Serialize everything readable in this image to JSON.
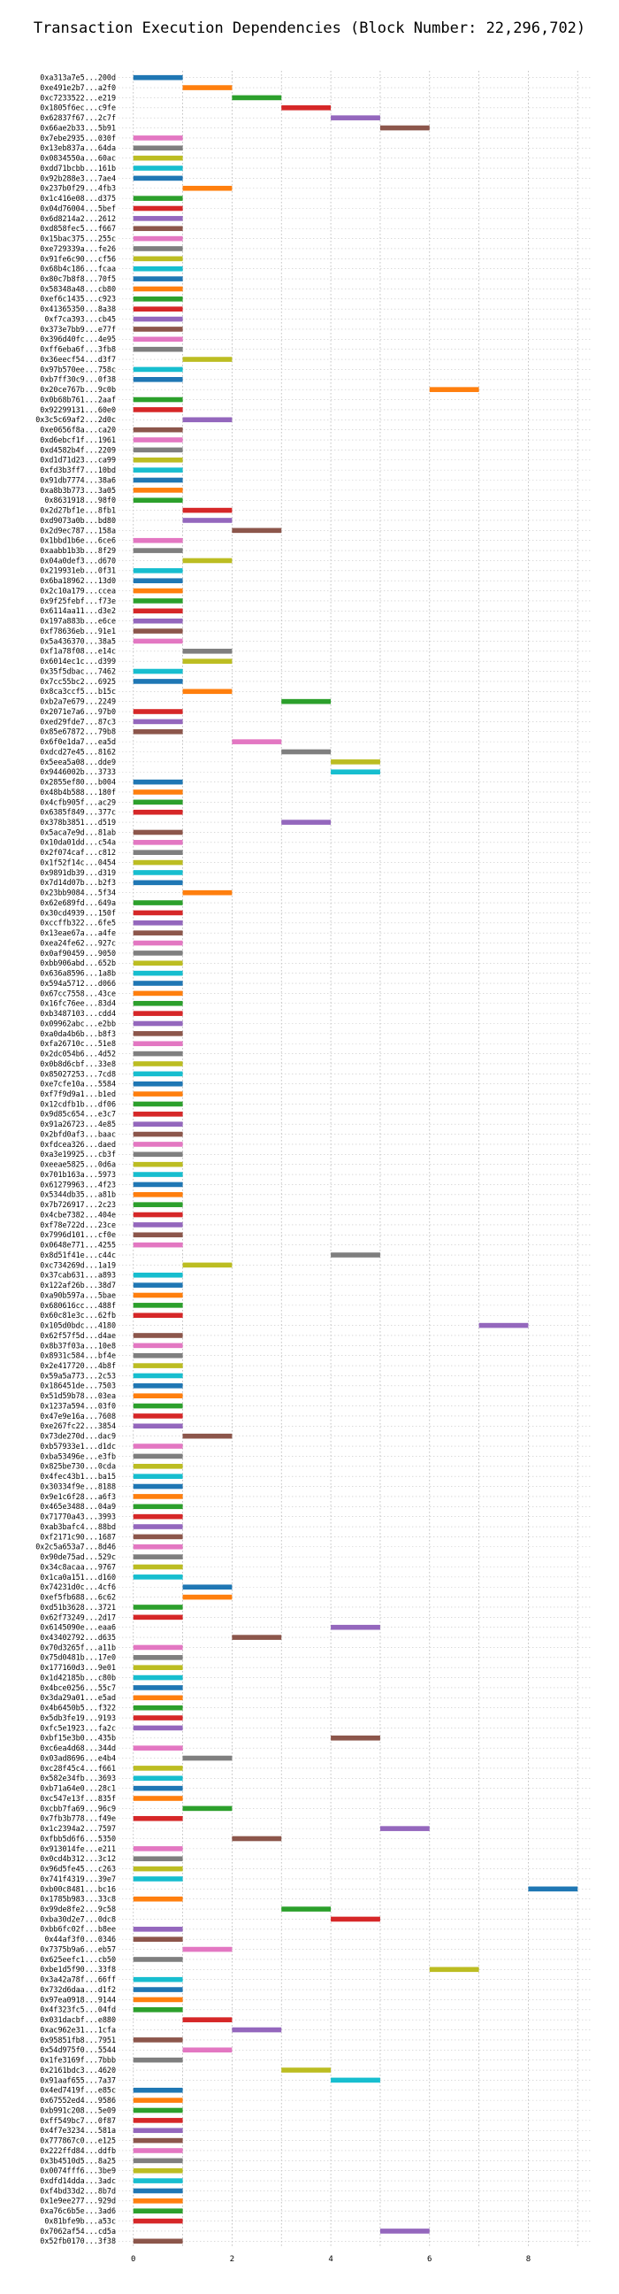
{
  "chart_data": {
    "type": "gantt",
    "title": "Transaction Execution Dependencies (Block Number: 22,296,702)",
    "xlabel": "",
    "ylabel": "",
    "xlim": [
      -0.3,
      9.3
    ],
    "xticks": [
      0,
      2,
      4,
      6,
      8
    ],
    "grid": true,
    "colors": [
      "#1f77b4",
      "#ff7f0e",
      "#2ca02c",
      "#d62728",
      "#9467bd",
      "#8c564b",
      "#e377c2",
      "#7f7f7f",
      "#bcbd22",
      "#17becf"
    ],
    "rows": [
      {
        "tx": "0xa313a7e5...200d",
        "start": 0
      },
      {
        "tx": "0xe491e2b7...a2f0",
        "start": 1
      },
      {
        "tx": "0xc7233522...e219",
        "start": 2
      },
      {
        "tx": "0x1805f6ec...c9fe",
        "start": 3
      },
      {
        "tx": "0x62837f67...2c7f",
        "start": 4
      },
      {
        "tx": "0x66ae2b33...5b91",
        "start": 5
      },
      {
        "tx": "0x7ebe2935...030f",
        "start": 0
      },
      {
        "tx": "0x13eb837a...64da",
        "start": 0
      },
      {
        "tx": "0x0834550a...60ac",
        "start": 0
      },
      {
        "tx": "0xdd71bcbb...161b",
        "start": 0
      },
      {
        "tx": "0x92b288e3...7ae4",
        "start": 0
      },
      {
        "tx": "0x237b0f29...4fb3",
        "start": 1
      },
      {
        "tx": "0x1c416e08...d375",
        "start": 0
      },
      {
        "tx": "0x04d76004...5bef",
        "start": 0
      },
      {
        "tx": "0x6d8214a2...2612",
        "start": 0
      },
      {
        "tx": "0xd858fec5...f667",
        "start": 0
      },
      {
        "tx": "0x15bac375...255c",
        "start": 0
      },
      {
        "tx": "0xe729339a...fe26",
        "start": 0
      },
      {
        "tx": "0x91fe6c90...cf56",
        "start": 0
      },
      {
        "tx": "0x68b4c186...fcaa",
        "start": 0
      },
      {
        "tx": "0x80c7b8f8...70f5",
        "start": 0
      },
      {
        "tx": "0x58348a48...cb80",
        "start": 0
      },
      {
        "tx": "0xef6c1435...c923",
        "start": 0
      },
      {
        "tx": "0x41365350...8a38",
        "start": 0
      },
      {
        "tx": "0xf7ca393...cb45",
        "start": 0
      },
      {
        "tx": "0x373e7bb9...e77f",
        "start": 0
      },
      {
        "tx": "0x396d40fc...4e95",
        "start": 0
      },
      {
        "tx": "0xff6eba6f...3fb8",
        "start": 0
      },
      {
        "tx": "0x36eecf54...d3f7",
        "start": 1
      },
      {
        "tx": "0x97b570ee...758c",
        "start": 0
      },
      {
        "tx": "0xb7ff30c9...0f38",
        "start": 0
      },
      {
        "tx": "0x20ce767b...9c0b",
        "start": 6
      },
      {
        "tx": "0x0b68b761...2aaf",
        "start": 0
      },
      {
        "tx": "0x92299131...60e0",
        "start": 0
      },
      {
        "tx": "0x3c5c69af2...2d0c",
        "start": 1
      },
      {
        "tx": "0xe0656f8a...ca20",
        "start": 0
      },
      {
        "tx": "0xd6ebcf1f...1961",
        "start": 0
      },
      {
        "tx": "0xd4582b4f...2209",
        "start": 0
      },
      {
        "tx": "0xd1d71d23...ca99",
        "start": 0
      },
      {
        "tx": "0xfd3b3ff7...10bd",
        "start": 0
      },
      {
        "tx": "0x91db7774...38a6",
        "start": 0
      },
      {
        "tx": "0xa8b3b773...3a05",
        "start": 0
      },
      {
        "tx": "0x8631918...98f0",
        "start": 0
      },
      {
        "tx": "0x2d27bf1e...8fb1",
        "start": 1
      },
      {
        "tx": "0xd9073a0b...bd80",
        "start": 1
      },
      {
        "tx": "0x2d9ec787...158a",
        "start": 2
      },
      {
        "tx": "0x1bbd1b6e...6ce6",
        "start": 0
      },
      {
        "tx": "0xaabb1b3b...8f29",
        "start": 0
      },
      {
        "tx": "0x04a0def3...d670",
        "start": 1
      },
      {
        "tx": "0x219931eb...0f31",
        "start": 0
      },
      {
        "tx": "0x6ba18962...13d0",
        "start": 0
      },
      {
        "tx": "0x2c10a179...ccea",
        "start": 0
      },
      {
        "tx": "0x9f25febf...f73e",
        "start": 0
      },
      {
        "tx": "0x6114aa11...d3e2",
        "start": 0
      },
      {
        "tx": "0x197a883b...e6ce",
        "start": 0
      },
      {
        "tx": "0xf78636eb...91e1",
        "start": 0
      },
      {
        "tx": "0x5a436370...38a5",
        "start": 0
      },
      {
        "tx": "0xf1a78f08...e14c",
        "start": 1
      },
      {
        "tx": "0x6014ec1c...d399",
        "start": 1
      },
      {
        "tx": "0x35f5dbac...7462",
        "start": 0
      },
      {
        "tx": "0x7cc55bc2...6925",
        "start": 0
      },
      {
        "tx": "0x8ca3ccf5...b15c",
        "start": 1
      },
      {
        "tx": "0xb2a7e679...2249",
        "start": 3
      },
      {
        "tx": "0x2071e7a6...97b0",
        "start": 0
      },
      {
        "tx": "0xed29fde7...87c3",
        "start": 0
      },
      {
        "tx": "0x85e67872...79b8",
        "start": 0
      },
      {
        "tx": "0x6f0e1da7...ea5d",
        "start": 2
      },
      {
        "tx": "0xdcd27e45...8162",
        "start": 3
      },
      {
        "tx": "0x5eea5a08...dde9",
        "start": 4
      },
      {
        "tx": "0x9446002b...3733",
        "start": 4
      },
      {
        "tx": "0x2855ef80...b004",
        "start": 0
      },
      {
        "tx": "0x48b4b588...180f",
        "start": 0
      },
      {
        "tx": "0x4cfb905f...ac29",
        "start": 0
      },
      {
        "tx": "0x6385f849...377c",
        "start": 0
      },
      {
        "tx": "0x378b3851...d519",
        "start": 3
      },
      {
        "tx": "0x5aca7e9d...81ab",
        "start": 0
      },
      {
        "tx": "0x10da01dd...c54a",
        "start": 0
      },
      {
        "tx": "0x2f074caf...c812",
        "start": 0
      },
      {
        "tx": "0x1f52f14c...0454",
        "start": 0
      },
      {
        "tx": "0x9891db39...d319",
        "start": 0
      },
      {
        "tx": "0x7d14d07b...b2f3",
        "start": 0
      },
      {
        "tx": "0x23bb9084...5f34",
        "start": 1
      },
      {
        "tx": "0x62e689fd...649a",
        "start": 0
      },
      {
        "tx": "0x30cd4939...150f",
        "start": 0
      },
      {
        "tx": "0xccffb322...6fe5",
        "start": 0
      },
      {
        "tx": "0x13eae67a...a4fe",
        "start": 0
      },
      {
        "tx": "0xea24fe62...927c",
        "start": 0
      },
      {
        "tx": "0x0af90459...9050",
        "start": 0
      },
      {
        "tx": "0xbb906abd...652b",
        "start": 0
      },
      {
        "tx": "0x636a8596...1a8b",
        "start": 0
      },
      {
        "tx": "0x594a5712...d066",
        "start": 0
      },
      {
        "tx": "0x67cc7558...43ce",
        "start": 0
      },
      {
        "tx": "0x16fc76ee...83d4",
        "start": 0
      },
      {
        "tx": "0xb3487103...cdd4",
        "start": 0
      },
      {
        "tx": "0x09962abc...e2bb",
        "start": 0
      },
      {
        "tx": "0xa0da4b6b...b8f3",
        "start": 0
      },
      {
        "tx": "0xfa26710c...51e8",
        "start": 0
      },
      {
        "tx": "0x2dc054b6...4d52",
        "start": 0
      },
      {
        "tx": "0x0b8d6cbf...33e8",
        "start": 0
      },
      {
        "tx": "0x85027253...7cd8",
        "start": 0
      },
      {
        "tx": "0xe7cfe10a...5584",
        "start": 0
      },
      {
        "tx": "0xf7f9d9a1...b1ed",
        "start": 0
      },
      {
        "tx": "0x12cdfb1b...df06",
        "start": 0
      },
      {
        "tx": "0x9d85c654...e3c7",
        "start": 0
      },
      {
        "tx": "0x91a26723...4e85",
        "start": 0
      },
      {
        "tx": "0x2bfd0af3...baac",
        "start": 0
      },
      {
        "tx": "0xfdcea326...daed",
        "start": 0
      },
      {
        "tx": "0xa3e19925...cb3f",
        "start": 0
      },
      {
        "tx": "0xeeae5825...0d6a",
        "start": 0
      },
      {
        "tx": "0x701b163a...5973",
        "start": 0
      },
      {
        "tx": "0x61279963...4f23",
        "start": 0
      },
      {
        "tx": "0x5344db35...a81b",
        "start": 0
      },
      {
        "tx": "0x7b726917...2c23",
        "start": 0
      },
      {
        "tx": "0x4cbe7382...404e",
        "start": 0
      },
      {
        "tx": "0xf78e722d...23ce",
        "start": 0
      },
      {
        "tx": "0x7996d101...cf0e",
        "start": 0
      },
      {
        "tx": "0x0648e771...4255",
        "start": 0
      },
      {
        "tx": "0x8d51f41e...c44c",
        "start": 4
      },
      {
        "tx": "0xc734269d...1a19",
        "start": 1
      },
      {
        "tx": "0x37cab631...a893",
        "start": 0
      },
      {
        "tx": "0x122af26b...38d7",
        "start": 0
      },
      {
        "tx": "0xa90b597a...5bae",
        "start": 0
      },
      {
        "tx": "0x680616cc...488f",
        "start": 0
      },
      {
        "tx": "0x60c81e3c...62fb",
        "start": 0
      },
      {
        "tx": "0x105d0bdc...4180",
        "start": 7
      },
      {
        "tx": "0x62f57f5d...d4ae",
        "start": 0
      },
      {
        "tx": "0x8b37f03a...10e8",
        "start": 0
      },
      {
        "tx": "0x8931c584...bf4e",
        "start": 0
      },
      {
        "tx": "0x2e417720...4b8f",
        "start": 0
      },
      {
        "tx": "0x59a5a773...2c53",
        "start": 0
      },
      {
        "tx": "0x186451de...7503",
        "start": 0
      },
      {
        "tx": "0x51d59b78...03ea",
        "start": 0
      },
      {
        "tx": "0x1237a594...03f0",
        "start": 0
      },
      {
        "tx": "0x47e9e16a...7608",
        "start": 0
      },
      {
        "tx": "0xe267fc22...3854",
        "start": 0
      },
      {
        "tx": "0x73de270d...dac9",
        "start": 1
      },
      {
        "tx": "0xb57933e1...d1dc",
        "start": 0
      },
      {
        "tx": "0xba53496e...e3fb",
        "start": 0
      },
      {
        "tx": "0x825be730...0cda",
        "start": 0
      },
      {
        "tx": "0x4fec43b1...ba15",
        "start": 0
      },
      {
        "tx": "0x30334f9e...8188",
        "start": 0
      },
      {
        "tx": "0x9e1c6f28...a6f3",
        "start": 0
      },
      {
        "tx": "0x465e3488...04a9",
        "start": 0
      },
      {
        "tx": "0x71770a43...3993",
        "start": 0
      },
      {
        "tx": "0xab3bafc4...88bd",
        "start": 0
      },
      {
        "tx": "0xf2171c90...1687",
        "start": 0
      },
      {
        "tx": "0x2c5a653a7...8d46",
        "start": 0
      },
      {
        "tx": "0x90de75ad...529c",
        "start": 0
      },
      {
        "tx": "0x34c8acaa...9767",
        "start": 0
      },
      {
        "tx": "0x1ca0a151...d160",
        "start": 0
      },
      {
        "tx": "0x74231d0c...4cf6",
        "start": 1
      },
      {
        "tx": "0xef5fb688...6c62",
        "start": 1
      },
      {
        "tx": "0xd51b3628...3721",
        "start": 0
      },
      {
        "tx": "0x62f73249...2d17",
        "start": 0
      },
      {
        "tx": "0x6145090e...eaa6",
        "start": 4
      },
      {
        "tx": "0x43402792...d635",
        "start": 2
      },
      {
        "tx": "0x70d3265f...a11b",
        "start": 0
      },
      {
        "tx": "0x75d0481b...17e0",
        "start": 0
      },
      {
        "tx": "0x177160d3...9e01",
        "start": 0
      },
      {
        "tx": "0x1d42185b...c80b",
        "start": 0
      },
      {
        "tx": "0x4bce0256...55c7",
        "start": 0
      },
      {
        "tx": "0x3da29a01...e5ad",
        "start": 0
      },
      {
        "tx": "0x4b6450b5...f322",
        "start": 0
      },
      {
        "tx": "0x5db3fe19...9193",
        "start": 0
      },
      {
        "tx": "0xfc5e1923...fa2c",
        "start": 0
      },
      {
        "tx": "0xbf15e3b0...435b",
        "start": 4
      },
      {
        "tx": "0xc6ea4d68...344d",
        "start": 0
      },
      {
        "tx": "0x03ad8696...e4b4",
        "start": 1
      },
      {
        "tx": "0xc28f45c4...f661",
        "start": 0
      },
      {
        "tx": "0x582e34fb...3693",
        "start": 0
      },
      {
        "tx": "0xb71a64e0...28c1",
        "start": 0
      },
      {
        "tx": "0xc547e13f...835f",
        "start": 0
      },
      {
        "tx": "0xcbb7fa69...96c9",
        "start": 1
      },
      {
        "tx": "0x7fb3b778...f49e",
        "start": 0
      },
      {
        "tx": "0x1c2394a2...7597",
        "start": 5
      },
      {
        "tx": "0xfbb5d6f6...5350",
        "start": 2
      },
      {
        "tx": "0x913014fe...e211",
        "start": 0
      },
      {
        "tx": "0x0cd4b312...3c12",
        "start": 0
      },
      {
        "tx": "0x96d5fe45...c263",
        "start": 0
      },
      {
        "tx": "0x741f4319...39e7",
        "start": 0
      },
      {
        "tx": "0xb00c8481...bc16",
        "start": 8
      },
      {
        "tx": "0x1785b983...33c8",
        "start": 0
      },
      {
        "tx": "0x99de8fe2...9c58",
        "start": 3
      },
      {
        "tx": "0xba30d2e7...0dc8",
        "start": 4
      },
      {
        "tx": "0xbb6fc02f...b8ee",
        "start": 0
      },
      {
        "tx": "0x44af3f0...0346",
        "start": 0
      },
      {
        "tx": "0x7375b9a6...eb57",
        "start": 1
      },
      {
        "tx": "0x625eefc1...cb50",
        "start": 0
      },
      {
        "tx": "0xbe1d5f90...33f8",
        "start": 6
      },
      {
        "tx": "0x3a42a78f...66ff",
        "start": 0
      },
      {
        "tx": "0x732d6daa...d1f2",
        "start": 0
      },
      {
        "tx": "0x97ea0918...9144",
        "start": 0
      },
      {
        "tx": "0x4f323fc5...04fd",
        "start": 0
      },
      {
        "tx": "0x031dacbf...e880",
        "start": 1
      },
      {
        "tx": "0xac962e31...1cfa",
        "start": 2
      },
      {
        "tx": "0x95851fb8...7951",
        "start": 0
      },
      {
        "tx": "0x54d975f0...5544",
        "start": 1
      },
      {
        "tx": "0x1fe3169f...7bbb",
        "start": 0
      },
      {
        "tx": "0x2161bdc3...4620",
        "start": 3
      },
      {
        "tx": "0x91aaf655...7a37",
        "start": 4
      },
      {
        "tx": "0x4ed7419f...e85c",
        "start": 0
      },
      {
        "tx": "0x67552ed4...9586",
        "start": 0
      },
      {
        "tx": "0xb991c208...5e09",
        "start": 0
      },
      {
        "tx": "0xff549bc7...0f87",
        "start": 0
      },
      {
        "tx": "0x4f7e3234...581a",
        "start": 0
      },
      {
        "tx": "0x777867c0...e125",
        "start": 0
      },
      {
        "tx": "0x222ffd84...ddfb",
        "start": 0
      },
      {
        "tx": "0x3b4510d5...8a25",
        "start": 0
      },
      {
        "tx": "0x0074fff6...3be9",
        "start": 0
      },
      {
        "tx": "0xdfd14dda...3adc",
        "start": 0
      },
      {
        "tx": "0xf4bd33d2...8b7d",
        "start": 0
      },
      {
        "tx": "0x1e9ee277...929d",
        "start": 0
      },
      {
        "tx": "0xa76c6b5e...3ad6",
        "start": 0
      },
      {
        "tx": "0x81bfe9b...a53c",
        "start": 0
      },
      {
        "tx": "0x7062af54...cd5a",
        "start": 5
      },
      {
        "tx": "0x52fb0170...3f38",
        "start": 0
      }
    ]
  }
}
